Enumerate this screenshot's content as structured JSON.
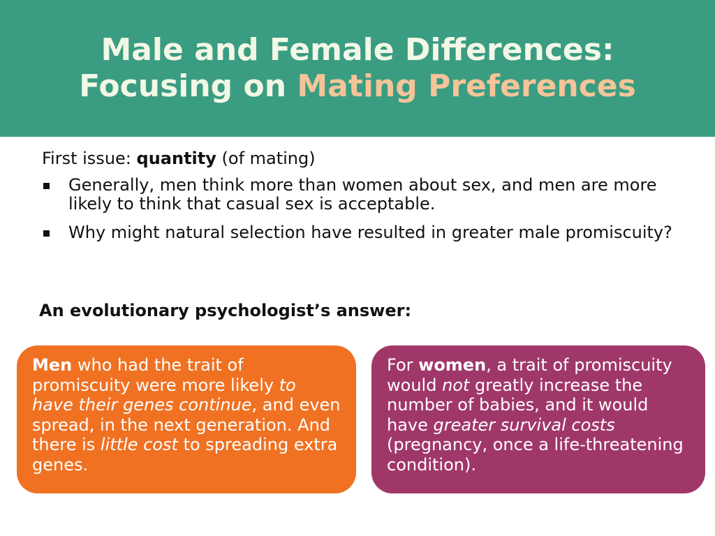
{
  "header": {
    "title_line1": "Male and Female Differences:",
    "title_line2_prefix": "Focusing on ",
    "title_line2_accent": "Mating Preferences",
    "background_color": "#3a9d82",
    "accent_color": "#f5c498"
  },
  "content": {
    "first_issue_prefix": "First issue: ",
    "first_issue_bold": "quantity",
    "first_issue_suffix": " (of mating)",
    "bullet_icon": "square-bullet-icon",
    "bullets": [
      "Generally, men think more than women about sex, and men are more likely to think that casual sex is acceptable.",
      "Why might natural selection have resulted in greater male promiscuity?"
    ],
    "answer_heading": "An evolutionary psychologist’s answer:"
  },
  "boxes": {
    "men": {
      "color": "#f07122",
      "p1": "Men",
      "p2": " who had the trait of promiscuity were more likely ",
      "p3": "to have their genes continue",
      "p4": ", and even spread, in the next generation.  And there is ",
      "p5": "little cost",
      "p6": " to spreading extra genes."
    },
    "women": {
      "color": "#a03769",
      "p1": "For ",
      "p2": "women",
      "p3": ", a trait of promiscuity would ",
      "p4": "not",
      "p5": " greatly increase the number of babies, and it would have ",
      "p6": "greater survival costs",
      "p7": " (pregnancy, once a life-threatening condition)."
    }
  }
}
